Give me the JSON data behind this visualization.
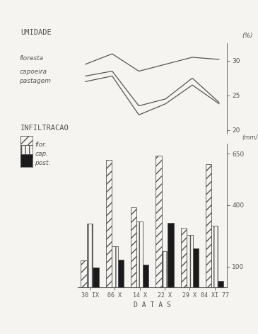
{
  "title_umidade": "UMIDADE",
  "title_infiltracao": "INFILTRACAO",
  "ylabel_umidade": "(%)",
  "ylabel_bar": "(mm/min)",
  "xlabel": "D A T A S",
  "dates": [
    "30 IX",
    "06 X",
    "14 X",
    "22 X",
    "29 X",
    "04 XI 77"
  ],
  "umidade": {
    "floresta": [
      29.5,
      31.0,
      28.5,
      29.5,
      30.5,
      30.2
    ],
    "capoeira": [
      27.8,
      28.5,
      23.5,
      24.5,
      27.5,
      24.0
    ],
    "pastagem": [
      27.0,
      27.8,
      22.2,
      23.8,
      26.5,
      23.8
    ]
  },
  "umidade_ylim": [
    19.5,
    32.5
  ],
  "umidade_yticks": [
    20,
    25,
    30
  ],
  "infiltracao": {
    "floresta": [
      130,
      620,
      390,
      640,
      290,
      600
    ],
    "capoeira": [
      310,
      200,
      320,
      175,
      255,
      300
    ],
    "pastagem": [
      95,
      135,
      110,
      315,
      190,
      30
    ]
  },
  "bar_ylim": [
    0,
    700
  ],
  "bar_yticks": [
    100,
    400,
    650
  ],
  "bg_color": "#f5f4f0",
  "line_color": "#555555",
  "bar_color_post": "#1a1a1a"
}
